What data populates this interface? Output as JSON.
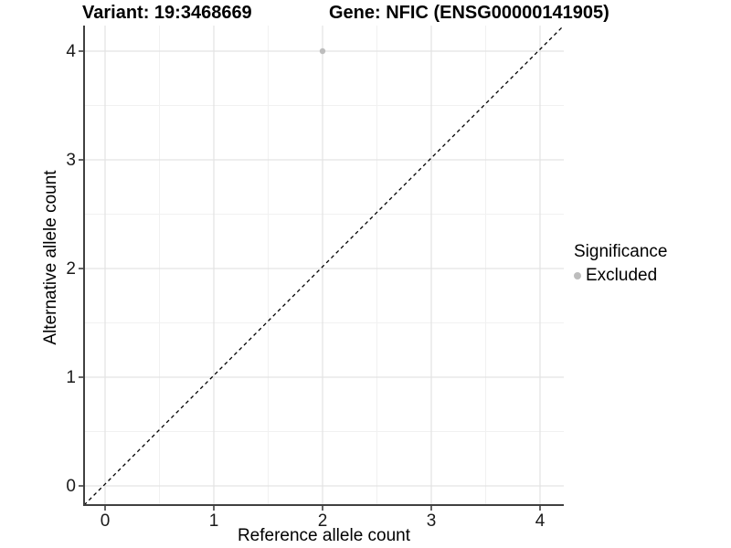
{
  "titles": {
    "variant": "Variant: 19:3468669",
    "gene": "Gene: NFIC (ENSG00000141905)"
  },
  "axes": {
    "x_label": "Reference allele count",
    "y_label": "Alternative allele count"
  },
  "legend": {
    "title": "Significance",
    "items": [
      {
        "label": "Excluded",
        "color": "#bdbdbd"
      }
    ]
  },
  "colors": {
    "background": "#ffffff",
    "grid_major": "#e3e3e3",
    "grid_minor": "#f1f1f1",
    "axis_line": "#404040",
    "tick_mark": "#333333",
    "dashed_line": "#000000",
    "point": "#bdbdbd"
  },
  "chart_data": {
    "type": "scatter",
    "title": "Variant: 19:3468669    Gene: NFIC (ENSG00000141905)",
    "xlabel": "Reference allele count",
    "ylabel": "Alternative allele count",
    "xlim": [
      -0.2,
      4.2
    ],
    "ylim": [
      -0.2,
      4.2
    ],
    "x_ticks": [
      0,
      1,
      2,
      3,
      4
    ],
    "y_ticks": [
      0,
      1,
      2,
      3,
      4
    ],
    "minor_ticks": [
      0.5,
      1.5,
      2.5,
      3.5
    ],
    "grid": "major+minor",
    "legend_position": "right",
    "series": [
      {
        "name": "Excluded",
        "color": "#bdbdbd",
        "points": [
          {
            "x": 2,
            "y": 4
          }
        ]
      }
    ],
    "reference_line": {
      "type": "identity y=x",
      "style": "dashed",
      "color": "#000000"
    }
  }
}
